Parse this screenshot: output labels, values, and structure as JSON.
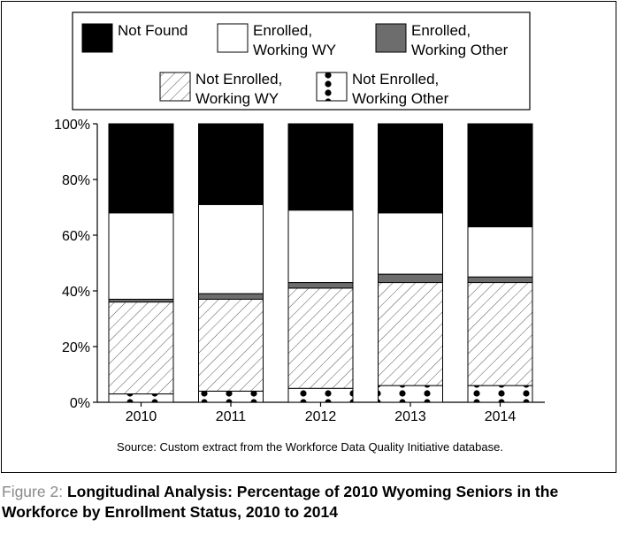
{
  "chart_data": {
    "type": "bar",
    "stacked": true,
    "title": "",
    "xlabel": "",
    "ylabel": "",
    "ylim": [
      0,
      100
    ],
    "y_tick_labels": [
      "0%",
      "20%",
      "40%",
      "60%",
      "80%",
      "100%"
    ],
    "categories": [
      "2010",
      "2011",
      "2012",
      "2013",
      "2014"
    ],
    "grid": false,
    "legend_position": "top",
    "series": [
      {
        "name": "Not Enrolled, Working Other",
        "pattern": "dots",
        "values": [
          3,
          4,
          5,
          6,
          6
        ]
      },
      {
        "name": "Not Enrolled, Working WY",
        "pattern": "hatch",
        "values": [
          33,
          33,
          36,
          37,
          37
        ]
      },
      {
        "name": "Enrolled, Working Other",
        "pattern": "gray",
        "values": [
          1,
          2,
          2,
          3,
          2
        ]
      },
      {
        "name": "Enrolled, Working WY",
        "pattern": "white",
        "values": [
          31,
          32,
          26,
          22,
          18
        ]
      },
      {
        "name": "Not Found",
        "pattern": "black",
        "values": [
          32,
          29,
          31,
          32,
          37
        ]
      }
    ],
    "legend_rows": [
      [
        "Not Found",
        "Enrolled, Working WY",
        "Enrolled, Working Other"
      ],
      [
        "Not Enrolled, Working WY",
        "Not Enrolled, Working Other"
      ]
    ],
    "legend_lines": {
      "Not Found": [
        "Not Found"
      ],
      "Enrolled, Working WY": [
        "Enrolled,",
        "Working WY"
      ],
      "Enrolled, Working Other": [
        "Enrolled,",
        "Working Other"
      ],
      "Not Enrolled, Working WY": [
        "Not Enrolled,",
        "Working WY"
      ],
      "Not Enrolled, Working Other": [
        "Not Enrolled,",
        "Working Other"
      ]
    },
    "colors": {
      "black": "#000000",
      "white": "#ffffff",
      "gray": "#6d6d6d"
    }
  },
  "source_note": "Source: Custom extract from the Workforce Data Quality Initiative database.",
  "caption": {
    "lead": "Figure 2: ",
    "title": "Longitudinal Analysis:  Percentage of 2010 Wyoming Seniors in the Workforce by Enrollment Status, 2010 to 2014"
  }
}
